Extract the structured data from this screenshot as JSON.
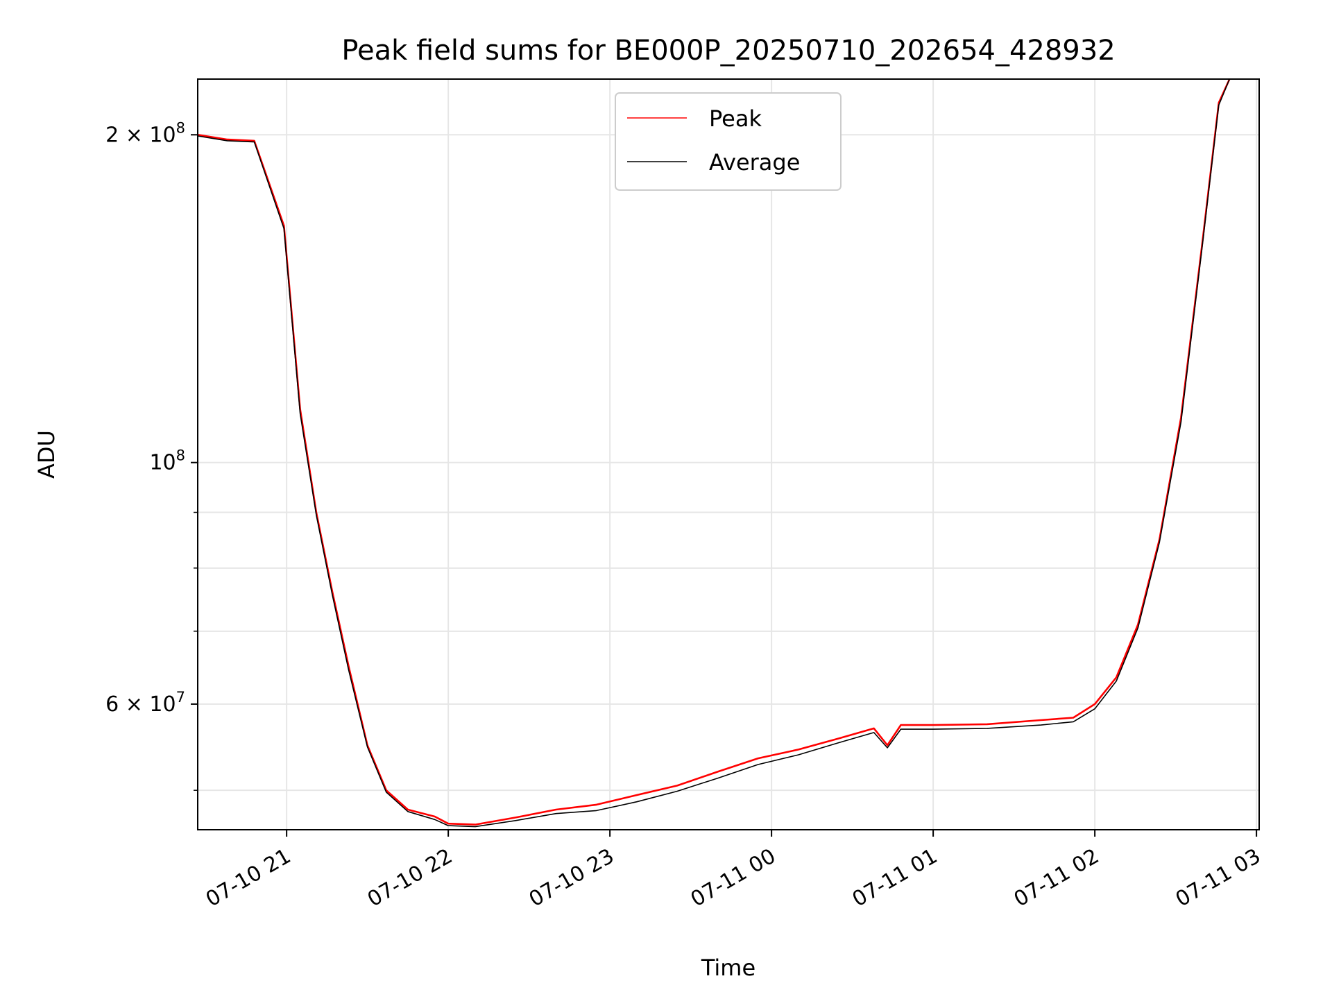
{
  "chart_data": {
    "type": "line",
    "title": "Peak field sums for BE000P_20250710_202654_428932",
    "xlabel": "Time",
    "ylabel": "ADU",
    "y_scale": "log",
    "grid": true,
    "legend_position": "upper center",
    "xlim": [
      "2025-07-10 20:27",
      "2025-07-11 03:01"
    ],
    "ylim": [
      46000000,
      225000000
    ],
    "x_ticks": [
      "07-10 21",
      "07-10 22",
      "07-10 23",
      "07-11 00",
      "07-11 01",
      "07-11 02",
      "07-11 03"
    ],
    "y_ticks": [
      {
        "value": 200000000,
        "base": "2 × 10",
        "exp": "8"
      },
      {
        "value": 100000000,
        "base": "10",
        "exp": "8"
      },
      {
        "value": 60000000,
        "base": "6 × 10",
        "exp": "7"
      }
    ],
    "y_minor_ticks": [
      50000000,
      70000000,
      80000000,
      90000000
    ],
    "series": [
      {
        "name": "Peak",
        "color": "#ff0000",
        "x": [
          "2025-07-10 20:27",
          "2025-07-10 20:38",
          "2025-07-10 20:48",
          "2025-07-10 20:59",
          "2025-07-10 21:05",
          "2025-07-10 21:11",
          "2025-07-10 21:17",
          "2025-07-10 21:23",
          "2025-07-10 21:30",
          "2025-07-10 21:37",
          "2025-07-10 21:45",
          "2025-07-10 21:55",
          "2025-07-10 22:00",
          "2025-07-10 22:10",
          "2025-07-10 22:25",
          "2025-07-10 22:40",
          "2025-07-10 22:55",
          "2025-07-10 23:10",
          "2025-07-10 23:25",
          "2025-07-10 23:40",
          "2025-07-10 23:55",
          "2025-07-11 00:10",
          "2025-07-11 00:25",
          "2025-07-11 00:38",
          "2025-07-11 00:43",
          "2025-07-11 00:48",
          "2025-07-11 01:00",
          "2025-07-11 01:20",
          "2025-07-11 01:40",
          "2025-07-11 01:52",
          "2025-07-11 02:00",
          "2025-07-11 02:08",
          "2025-07-11 02:16",
          "2025-07-11 02:24",
          "2025-07-11 02:32",
          "2025-07-11 02:40",
          "2025-07-11 02:46",
          "2025-07-11 02:50"
        ],
        "values": [
          200000000,
          198000000,
          197500000,
          165000000,
          112000000,
          90000000,
          76000000,
          65000000,
          55000000,
          50000000,
          48000000,
          47300000,
          46600000,
          46500000,
          47200000,
          48000000,
          48500000,
          49500000,
          50500000,
          52000000,
          53500000,
          54500000,
          55800000,
          57000000,
          55000000,
          57400000,
          57400000,
          57500000,
          58000000,
          58300000,
          60000000,
          63500000,
          71000000,
          85000000,
          110000000,
          160000000,
          214000000,
          225000000
        ]
      },
      {
        "name": "Average",
        "color": "#000000",
        "x": [
          "2025-07-10 20:27",
          "2025-07-10 20:38",
          "2025-07-10 20:48",
          "2025-07-10 20:59",
          "2025-07-10 21:05",
          "2025-07-10 21:11",
          "2025-07-10 21:17",
          "2025-07-10 21:23",
          "2025-07-10 21:30",
          "2025-07-10 21:37",
          "2025-07-10 21:45",
          "2025-07-10 21:55",
          "2025-07-10 22:00",
          "2025-07-10 22:10",
          "2025-07-10 22:25",
          "2025-07-10 22:40",
          "2025-07-10 22:55",
          "2025-07-10 23:10",
          "2025-07-10 23:25",
          "2025-07-10 23:40",
          "2025-07-10 23:55",
          "2025-07-11 00:10",
          "2025-07-11 00:25",
          "2025-07-11 00:38",
          "2025-07-11 00:43",
          "2025-07-11 00:48",
          "2025-07-11 01:00",
          "2025-07-11 01:20",
          "2025-07-11 01:40",
          "2025-07-11 01:52",
          "2025-07-11 02:00",
          "2025-07-11 02:08",
          "2025-07-11 02:16",
          "2025-07-11 02:24",
          "2025-07-11 02:32",
          "2025-07-11 02:40",
          "2025-07-11 02:46",
          "2025-07-11 02:50"
        ],
        "values": [
          199500000,
          197500000,
          197000000,
          164000000,
          111000000,
          89500000,
          75500000,
          64500000,
          54800000,
          49800000,
          47800000,
          47000000,
          46400000,
          46300000,
          46900000,
          47600000,
          47900000,
          48800000,
          49900000,
          51300000,
          52800000,
          53900000,
          55300000,
          56500000,
          54700000,
          56900000,
          56900000,
          57000000,
          57400000,
          57800000,
          59400000,
          63000000,
          70500000,
          84500000,
          109000000,
          159000000,
          213000000,
          225000000
        ]
      }
    ]
  }
}
